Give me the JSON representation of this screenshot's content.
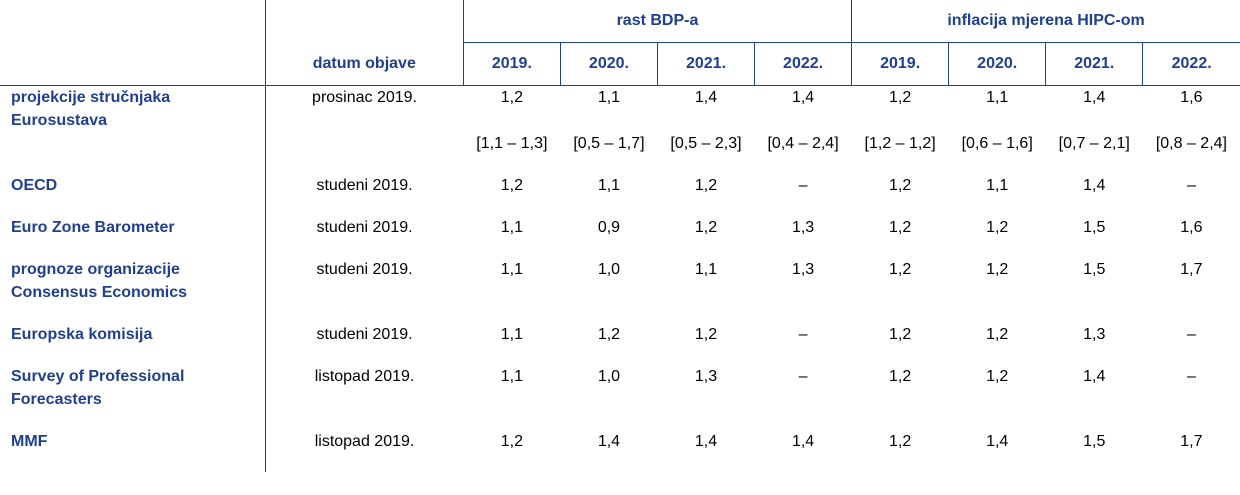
{
  "header": {
    "group_gdp": "rast BDP-a",
    "group_hicp": "inflacija mjerena HIPC-om",
    "date_col": "datum objave",
    "years": [
      "2019.",
      "2020.",
      "2021.",
      "2022.",
      "2019.",
      "2020.",
      "2021.",
      "2022."
    ]
  },
  "rows": [
    {
      "source": "projekcije stručnjaka Eurosustava",
      "date": "prosinac 2019.",
      "values": [
        "1,2",
        "1,1",
        "1,4",
        "1,4",
        "1,2",
        "1,1",
        "1,4",
        "1,6"
      ],
      "ranges": [
        "[1,1 – 1,3]",
        "[0,5 – 1,7]",
        "[0,5 – 2,3]",
        "[0,4 – 2,4]",
        "[1,2 – 1,2]",
        "[0,6 – 1,6]",
        "[0,7 – 2,1]",
        "[0,8 – 2,4]"
      ]
    },
    {
      "source": "OECD",
      "date": "studeni 2019.",
      "values": [
        "1,2",
        "1,1",
        "1,2",
        "–",
        "1,2",
        "1,1",
        "1,4",
        "–"
      ]
    },
    {
      "source": "Euro Zone Barometer",
      "date": "studeni 2019.",
      "values": [
        "1,1",
        "0,9",
        "1,2",
        "1,3",
        "1,2",
        "1,2",
        "1,5",
        "1,6"
      ]
    },
    {
      "source": "prognoze organizacije Consensus Economics",
      "date": "studeni 2019.",
      "values": [
        "1,1",
        "1,0",
        "1,1",
        "1,3",
        "1,2",
        "1,2",
        "1,5",
        "1,7"
      ]
    },
    {
      "source": "Europska komisija",
      "date": "studeni 2019.",
      "values": [
        "1,1",
        "1,2",
        "1,2",
        "–",
        "1,2",
        "1,2",
        "1,3",
        "–"
      ]
    },
    {
      "source": "Survey of Professional Forecasters",
      "date": "listopad 2019.",
      "values": [
        "1,1",
        "1,0",
        "1,3",
        "–",
        "1,2",
        "1,2",
        "1,4",
        "–"
      ]
    },
    {
      "source": "MMF",
      "date": "listopad 2019.",
      "values": [
        "1,2",
        "1,4",
        "1,4",
        "1,4",
        "1,2",
        "1,4",
        "1,5",
        "1,7"
      ]
    }
  ],
  "colors": {
    "accent": "#1f3f93"
  }
}
